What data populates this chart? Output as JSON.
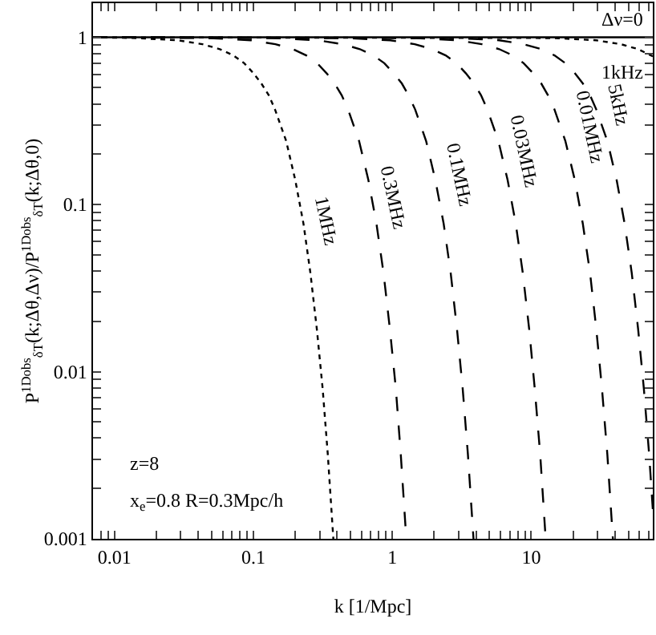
{
  "chart_data": {
    "type": "line",
    "xlabel": "k [1/Mpc]",
    "ylabel": "P$^{1Dobs}$$_{δT}$(k;Δθ,Δν)/P$^{1Dobs}$$_{δT}$(k;Δθ,0)",
    "log": "xy",
    "grid": false,
    "legend": false,
    "marker": "none",
    "xlim": [
      0.007,
      75
    ],
    "ylim": [
      0.001,
      1.6
    ],
    "xticks": [
      {
        "value": 0.008,
        "label": null
      },
      {
        "value": 0.009,
        "label": null
      },
      0.01,
      {
        "value": 0.02,
        "label": null
      },
      {
        "value": 0.03,
        "label": null
      },
      {
        "value": 0.04,
        "label": null
      },
      {
        "value": 0.05,
        "label": null
      },
      {
        "value": 0.06,
        "label": null
      },
      {
        "value": 0.07,
        "label": null
      },
      {
        "value": 0.08,
        "label": null
      },
      {
        "value": 0.09,
        "label": null
      },
      0.1,
      {
        "value": 0.2,
        "label": null
      },
      {
        "value": 0.3,
        "label": null
      },
      {
        "value": 0.4,
        "label": null
      },
      {
        "value": 0.5,
        "label": null
      },
      {
        "value": 0.6,
        "label": null
      },
      {
        "value": 0.7,
        "label": null
      },
      {
        "value": 0.8,
        "label": null
      },
      {
        "value": 0.9,
        "label": null
      },
      1,
      {
        "value": 2,
        "label": null
      },
      {
        "value": 3,
        "label": null
      },
      {
        "value": 4,
        "label": null
      },
      {
        "value": 5,
        "label": null
      },
      {
        "value": 6,
        "label": null
      },
      {
        "value": 7,
        "label": null
      },
      {
        "value": 8,
        "label": null
      },
      {
        "value": 9,
        "label": null
      },
      10,
      {
        "value": 20,
        "label": null
      },
      {
        "value": 30,
        "label": null
      },
      {
        "value": 40,
        "label": null
      },
      {
        "value": 50,
        "label": null
      },
      {
        "value": 60,
        "label": null
      },
      {
        "value": 70,
        "label": null
      }
    ],
    "yticks": [
      0.001,
      {
        "value": 0.002,
        "label": null
      },
      {
        "value": 0.003,
        "label": null
      },
      {
        "value": 0.004,
        "label": null
      },
      {
        "value": 0.005,
        "label": null
      },
      {
        "value": 0.006,
        "label": null
      },
      {
        "value": 0.007,
        "label": null
      },
      {
        "value": 0.008,
        "label": null
      },
      {
        "value": 0.009,
        "label": null
      },
      0.01,
      {
        "value": 0.02,
        "label": null
      },
      {
        "value": 0.03,
        "label": null
      },
      {
        "value": 0.04,
        "label": null
      },
      {
        "value": 0.05,
        "label": null
      },
      {
        "value": 0.06,
        "label": null
      },
      {
        "value": 0.07,
        "label": null
      },
      {
        "value": 0.08,
        "label": null
      },
      {
        "value": 0.09,
        "label": null
      },
      0.1,
      {
        "value": 0.2,
        "label": null
      },
      {
        "value": 0.3,
        "label": null
      },
      {
        "value": 0.4,
        "label": null
      },
      {
        "value": 0.5,
        "label": null
      },
      {
        "value": 0.6,
        "label": null
      },
      {
        "value": 0.7,
        "label": null
      },
      {
        "value": 0.8,
        "label": null
      },
      {
        "value": 0.9,
        "label": null
      },
      1
    ],
    "annotations": [
      "z=8",
      "x$_{e}$=0.8 R=0.3Mpc/h"
    ],
    "series": [
      {
        "name": "Δν=0",
        "color": "#000000",
        "line_style": "solid",
        "x": [
          0.007,
          75
        ],
        "values": [
          1,
          1
        ]
      },
      {
        "name": "1kHz",
        "color": "#000000",
        "line_style": "dotted",
        "x": [
          0.007,
          14.7,
          29.4,
          44.1,
          58.8,
          75
        ],
        "values": [
          1,
          0.99,
          0.96,
          0.91,
          0.85,
          0.77
        ]
      },
      {
        "name": "5kHz",
        "color": "#000000",
        "line_style": "dashed",
        "x": [
          0.007,
          2.94,
          5.88,
          8.82,
          11.8,
          14.7,
          17.6,
          20.6,
          23.5,
          26.5,
          29.4,
          35.3,
          41.2,
          47,
          52.9,
          58.8,
          64.7,
          70.6,
          75
        ],
        "values": [
          1,
          0.99,
          0.96,
          0.91,
          0.85,
          0.78,
          0.7,
          0.61,
          0.53,
          0.45,
          0.37,
          0.24,
          0.14,
          0.077,
          0.039,
          0.018,
          0.0079,
          0.0032,
          0.0015
        ]
      },
      {
        "name": "0.01MHz",
        "color": "#000000",
        "line_style": "dashed",
        "x": [
          0.007,
          1.47,
          2.94,
          4.41,
          5.88,
          7.35,
          8.82,
          10.3,
          11.8,
          13.2,
          14.7,
          17.6,
          20.6,
          23.5,
          26.5,
          29.4,
          32.3,
          35.3,
          38.7
        ],
        "values": [
          1,
          0.99,
          0.96,
          0.91,
          0.85,
          0.78,
          0.7,
          0.61,
          0.53,
          0.45,
          0.37,
          0.24,
          0.14,
          0.077,
          0.039,
          0.018,
          0.0079,
          0.0032,
          0.001
        ]
      },
      {
        "name": "0.03MHz",
        "color": "#000000",
        "line_style": "dashed",
        "x": [
          0.007,
          0.483,
          0.966,
          1.45,
          1.93,
          2.42,
          2.9,
          3.38,
          3.86,
          4.35,
          4.83,
          5.8,
          6.76,
          7.73,
          8.69,
          9.66,
          10.6,
          11.6,
          12.7
        ],
        "values": [
          1,
          0.99,
          0.96,
          0.91,
          0.85,
          0.78,
          0.7,
          0.61,
          0.53,
          0.45,
          0.37,
          0.24,
          0.14,
          0.077,
          0.039,
          0.018,
          0.0079,
          0.0032,
          0.001
        ]
      },
      {
        "name": "0.1MHz",
        "color": "#000000",
        "line_style": "dashed",
        "x": [
          0.007,
          0.146,
          0.292,
          0.438,
          0.584,
          0.73,
          0.876,
          1.02,
          1.17,
          1.31,
          1.46,
          1.75,
          2.04,
          2.34,
          2.63,
          2.92,
          3.21,
          3.5,
          3.84
        ],
        "values": [
          1,
          0.99,
          0.96,
          0.91,
          0.85,
          0.78,
          0.7,
          0.61,
          0.53,
          0.45,
          0.37,
          0.24,
          0.14,
          0.077,
          0.039,
          0.018,
          0.0079,
          0.0032,
          0.001
        ]
      },
      {
        "name": "0.3MHz",
        "color": "#000000",
        "line_style": "dashed",
        "x": [
          0.007,
          0.048,
          0.096,
          0.144,
          0.192,
          0.24,
          0.288,
          0.336,
          0.384,
          0.432,
          0.48,
          0.576,
          0.672,
          0.768,
          0.864,
          0.96,
          1.06,
          1.15,
          1.26
        ],
        "values": [
          1,
          0.99,
          0.96,
          0.91,
          0.85,
          0.78,
          0.7,
          0.61,
          0.53,
          0.45,
          0.37,
          0.24,
          0.14,
          0.077,
          0.039,
          0.018,
          0.0079,
          0.0032,
          0.001
        ]
      },
      {
        "name": "1MHz",
        "color": "#000000",
        "line_style": "dotted",
        "x": [
          0.007,
          0.0143,
          0.0286,
          0.0429,
          0.0572,
          0.0715,
          0.0858,
          0.1,
          0.114,
          0.129,
          0.143,
          0.172,
          0.2,
          0.229,
          0.257,
          0.286,
          0.315,
          0.343,
          0.376
        ],
        "values": [
          1,
          0.99,
          0.96,
          0.91,
          0.85,
          0.78,
          0.7,
          0.61,
          0.53,
          0.45,
          0.37,
          0.24,
          0.14,
          0.077,
          0.039,
          0.018,
          0.0079,
          0.0032,
          0.001
        ]
      }
    ]
  }
}
